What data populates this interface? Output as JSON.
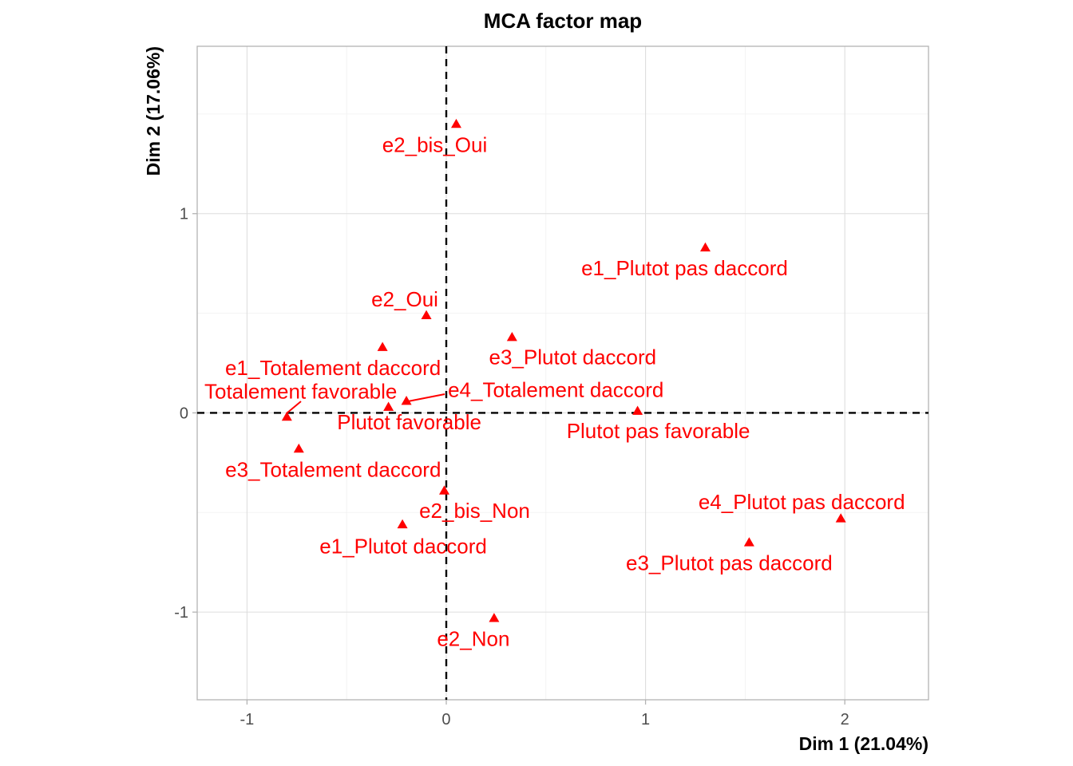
{
  "chart_data": {
    "type": "scatter",
    "title": "MCA factor map",
    "xlabel": "Dim 1 (21.04%)",
    "ylabel": "Dim 2 (17.06%)",
    "xlim": [
      -1.25,
      2.42
    ],
    "ylim": [
      -1.44,
      1.84
    ],
    "x_ticks": [
      -1,
      0,
      1,
      2
    ],
    "x_tick_labels": [
      "-1",
      "0",
      "1",
      "2"
    ],
    "y_ticks": [
      -1,
      0,
      1
    ],
    "y_tick_labels": [
      "-1",
      "0",
      "1"
    ],
    "grid": true,
    "zero_lines": true,
    "marker": "triangle",
    "color": "#ff0000",
    "points": [
      {
        "label": "e2_bis_Oui",
        "x": 0.05,
        "y": 1.45
      },
      {
        "label": "e1_Plutot pas daccord",
        "x": 1.3,
        "y": 0.83
      },
      {
        "label": "e2_Oui",
        "x": -0.1,
        "y": 0.49
      },
      {
        "label": "e1_Totalement daccord",
        "x": -0.32,
        "y": 0.33
      },
      {
        "label": "e3_Plutot daccord",
        "x": 0.33,
        "y": 0.38
      },
      {
        "label": "Totalement favorable",
        "x": -0.8,
        "y": -0.02
      },
      {
        "label": "e4_Totalement daccord",
        "x": -0.2,
        "y": 0.06
      },
      {
        "label": "Plutot favorable",
        "x": -0.29,
        "y": 0.03
      },
      {
        "label": "Plutot pas favorable",
        "x": 0.96,
        "y": 0.01
      },
      {
        "label": "e3_Totalement daccord",
        "x": -0.74,
        "y": -0.18
      },
      {
        "label": "e2_bis_Non",
        "x": -0.01,
        "y": -0.39
      },
      {
        "label": "e1_Plutot daccord",
        "x": -0.22,
        "y": -0.56
      },
      {
        "label": "e4_Plutot pas daccord",
        "x": 1.98,
        "y": -0.53
      },
      {
        "label": "e3_Plutot pas daccord",
        "x": 1.52,
        "y": -0.65
      },
      {
        "label": "e2_Non",
        "x": 0.24,
        "y": -1.03
      }
    ]
  }
}
